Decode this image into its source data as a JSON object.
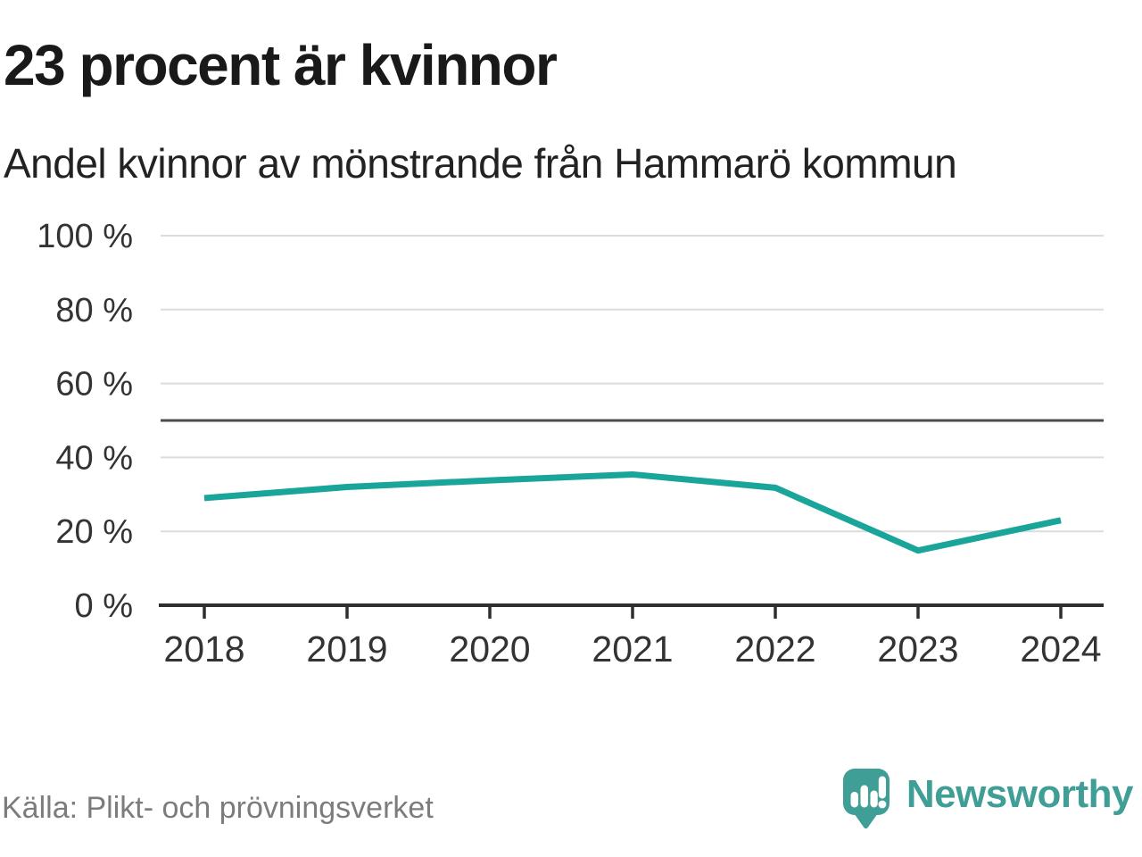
{
  "header": {
    "title": "23 procent är kvinnor",
    "subtitle": "Andel kvinnor av mönstrande från Hammarö kommun"
  },
  "chart_data": {
    "type": "line",
    "title": "23 procent är kvinnor",
    "subtitle": "Andel kvinnor av mönstrande från Hammarö kommun",
    "categories": [
      "2018",
      "2019",
      "2020",
      "2021",
      "2022",
      "2023",
      "2024"
    ],
    "series": [
      {
        "name": "Andel kvinnor",
        "values": [
          29,
          32,
          33.8,
          35.4,
          31.8,
          14.8,
          23
        ]
      }
    ],
    "ylim": [
      0,
      100
    ],
    "yticks": [
      0,
      20,
      40,
      60,
      80,
      100
    ],
    "ytick_suffix": " %",
    "reference_line": 50,
    "grid": "horizontal",
    "legend": "none",
    "line_color": "#1aa59a"
  },
  "footer": {
    "source": "Källa: Plikt- och prövningsverket",
    "brand": "Newsworthy"
  },
  "icons": {
    "logo": "newsworthy-speech-bubble-barchart-icon"
  },
  "colors": {
    "accent": "#1aa59a",
    "logo_teal": "#3f9e96",
    "title_text": "#191919",
    "axis_text": "#333333",
    "axis_line": "#2e2e2e",
    "gridline": "#dcdcdc",
    "reference_line": "#4d4d4d",
    "source_text": "#7c7c7c",
    "background": "#ffffff"
  }
}
